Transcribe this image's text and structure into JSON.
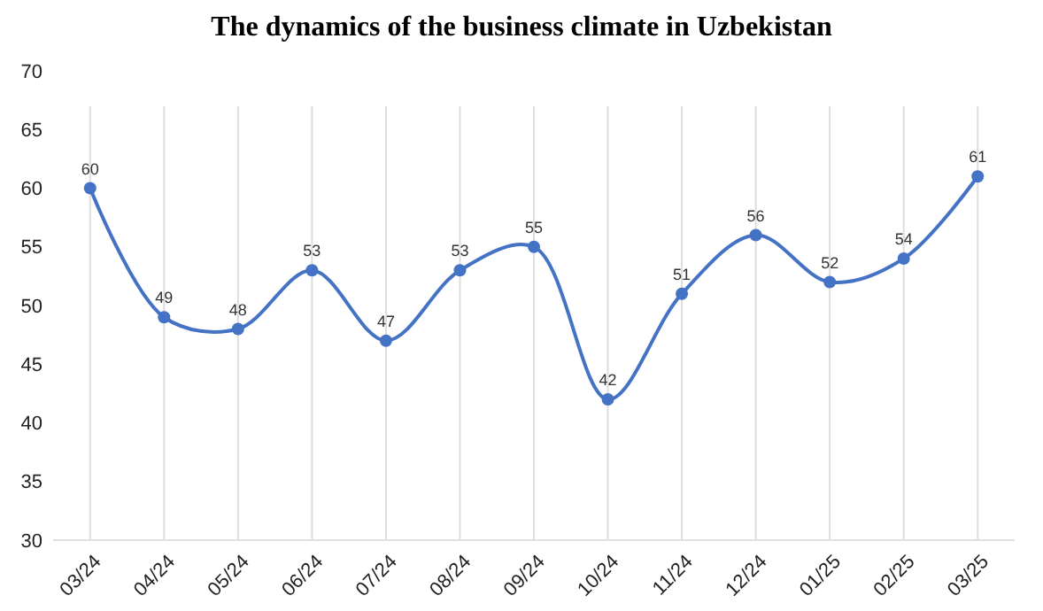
{
  "chart_data": {
    "type": "line",
    "title": "The dynamics of the business climate in Uzbekistan",
    "categories": [
      "03/24",
      "04/24",
      "05/24",
      "06/24",
      "07/24",
      "08/24",
      "09/24",
      "10/24",
      "11/24",
      "12/24",
      "01/25",
      "02/25",
      "03/25"
    ],
    "series": [
      {
        "color": "#4472c4",
        "values": [
          60,
          49,
          48,
          53,
          47,
          53,
          55,
          42,
          51,
          56,
          52,
          54,
          61
        ]
      }
    ],
    "ylim": [
      30,
      70
    ],
    "yticks": [
      30,
      35,
      40,
      45,
      50,
      55,
      60,
      65,
      70
    ],
    "grid": "x",
    "data_labels": true,
    "marker": "circle",
    "line_style": "solid"
  }
}
